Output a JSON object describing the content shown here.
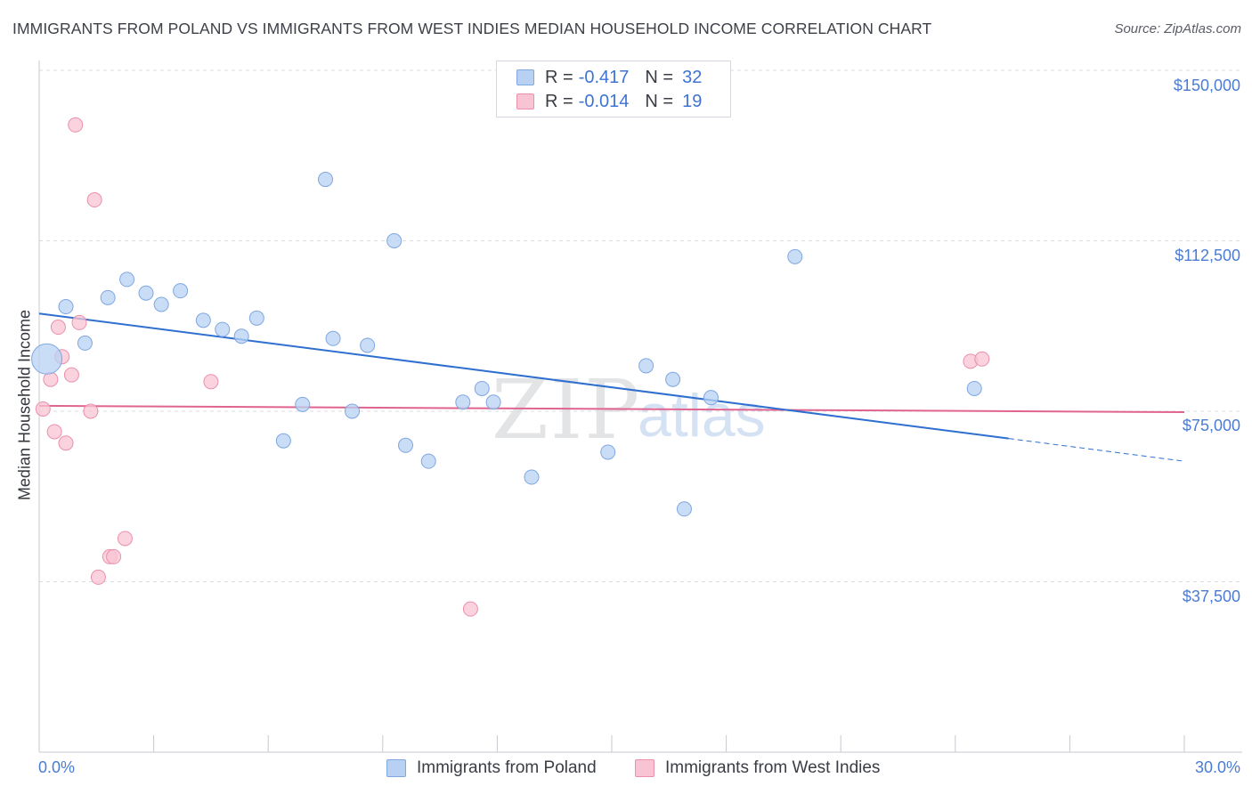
{
  "title": "IMMIGRANTS FROM POLAND VS IMMIGRANTS FROM WEST INDIES MEDIAN HOUSEHOLD INCOME CORRELATION CHART",
  "source": "Source: ZipAtlas.com",
  "watermark": {
    "zip": "ZIP",
    "atlas": "atlas"
  },
  "colors": {
    "poland_fill": "#b8d1f3",
    "poland_stroke": "#7fa7e0",
    "poland_line": "#2f6fd0",
    "westindies_fill": "#f8c4d3",
    "westindies_stroke": "#ea90ab",
    "westindies_line": "#e06490",
    "tick_label": "#4a7cd4",
    "grid": "#d9dce2"
  },
  "legend": {
    "rows": [
      {
        "r_label": "R = ",
        "r_value": "-0.417",
        "n_label": "N = ",
        "n_value": "32"
      },
      {
        "r_label": "R = ",
        "r_value": "-0.014",
        "n_label": "N = ",
        "n_value": "19"
      }
    ]
  },
  "bottom_legend": {
    "poland": "Immigrants from Poland",
    "westindies": "Immigrants from West Indies"
  },
  "chart_data": {
    "type": "scatter",
    "title": "IMMIGRANTS FROM POLAND VS IMMIGRANTS FROM WEST INDIES MEDIAN HOUSEHOLD INCOME CORRELATION CHART",
    "xlabel": "",
    "ylabel": "Median Household Income",
    "xlim": [
      0,
      30
    ],
    "ylim": [
      0,
      150000
    ],
    "x_tick_labels": [
      "0.0%",
      "30.0%"
    ],
    "y_ticks": [
      37500,
      75000,
      112500,
      150000
    ],
    "y_tick_labels": [
      "$37,500",
      "$75,000",
      "$112,500",
      "$150,000"
    ],
    "grid": "horizontal dashed",
    "legend_position": "top-center",
    "series": [
      {
        "name": "Immigrants from Poland",
        "color": "#b8d1f3",
        "points": [
          [
            0.2,
            86500,
            "large"
          ],
          [
            0.7,
            98000
          ],
          [
            1.2,
            90000
          ],
          [
            1.8,
            100000
          ],
          [
            2.3,
            104000
          ],
          [
            2.8,
            101000
          ],
          [
            3.2,
            98500
          ],
          [
            3.7,
            101500
          ],
          [
            4.3,
            95000
          ],
          [
            4.8,
            93000
          ],
          [
            5.3,
            91500
          ],
          [
            5.7,
            95500
          ],
          [
            6.4,
            68500
          ],
          [
            6.9,
            76500
          ],
          [
            7.5,
            126000
          ],
          [
            7.7,
            91000
          ],
          [
            8.2,
            75000
          ],
          [
            8.6,
            89500
          ],
          [
            9.3,
            112500
          ],
          [
            9.6,
            67500
          ],
          [
            10.2,
            64000
          ],
          [
            11.1,
            77000
          ],
          [
            11.6,
            80000
          ],
          [
            11.9,
            77000
          ],
          [
            12.9,
            60500
          ],
          [
            14.9,
            66000
          ],
          [
            15.9,
            85000
          ],
          [
            16.6,
            82000
          ],
          [
            16.9,
            53500
          ],
          [
            17.6,
            78000
          ],
          [
            19.8,
            109000
          ],
          [
            24.5,
            80000
          ]
        ],
        "trend": {
          "x": [
            0,
            25.4
          ],
          "y": [
            96500,
            69000
          ]
        },
        "trend_dashed": {
          "x": [
            25.4,
            30
          ],
          "y": [
            69000,
            64000
          ]
        }
      },
      {
        "name": "Immigrants from West Indies",
        "color": "#f8c4d3",
        "points": [
          [
            0.1,
            75500
          ],
          [
            0.3,
            82000
          ],
          [
            0.4,
            70500
          ],
          [
            0.5,
            93500
          ],
          [
            0.6,
            87000
          ],
          [
            0.7,
            68000
          ],
          [
            0.85,
            83000
          ],
          [
            0.95,
            138000
          ],
          [
            1.05,
            94500
          ],
          [
            1.35,
            75000
          ],
          [
            1.45,
            121500
          ],
          [
            1.55,
            38500
          ],
          [
            1.85,
            43000
          ],
          [
            1.95,
            43000
          ],
          [
            2.25,
            47000
          ],
          [
            4.5,
            81500
          ],
          [
            11.3,
            31500
          ],
          [
            24.4,
            86000
          ],
          [
            24.7,
            86500
          ]
        ],
        "trend": {
          "x": [
            0,
            30
          ],
          "y": [
            76200,
            74800
          ]
        }
      }
    ]
  }
}
